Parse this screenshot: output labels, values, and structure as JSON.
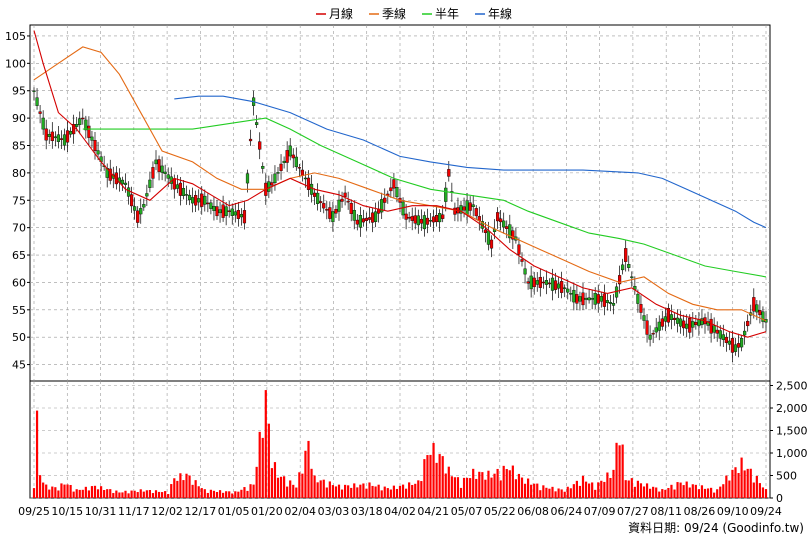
{
  "chart_data": {
    "type": "candlestick",
    "legend": [
      {
        "name": "月線",
        "color": "#d40000"
      },
      {
        "name": "季線",
        "color": "#e46a14"
      },
      {
        "name": "半年",
        "color": "#22cc22"
      },
      {
        "name": "年線",
        "color": "#2266cc"
      }
    ],
    "price_axis": {
      "min": 42,
      "max": 107,
      "ticks": [
        45,
        50,
        55,
        60,
        65,
        70,
        75,
        80,
        85,
        90,
        95,
        100,
        105
      ]
    },
    "volume_axis": {
      "min": 0,
      "max": 2600,
      "ticks": [
        0,
        500,
        1000,
        1500,
        2000,
        2500
      ],
      "tick_labels": [
        "0",
        "500",
        "1,000",
        "1,500",
        "2,000",
        "2,500"
      ]
    },
    "x_labels": [
      "09/25",
      "10/15",
      "10/31",
      "11/17",
      "12/02",
      "12/17",
      "01/05",
      "01/20",
      "02/04",
      "03/03",
      "03/18",
      "04/02",
      "04/21",
      "05/07",
      "05/22",
      "06/08",
      "06/24",
      "07/09",
      "07/27",
      "08/11",
      "08/26",
      "09/10",
      "09/24"
    ],
    "grid": true,
    "up_color": "#22aa22",
    "down_color": "#ee0000",
    "price_anchors": [
      [
        0,
        95
      ],
      [
        4,
        87
      ],
      [
        10,
        86
      ],
      [
        16,
        90
      ],
      [
        24,
        80
      ],
      [
        30,
        78
      ],
      [
        34,
        72
      ],
      [
        36,
        74
      ],
      [
        40,
        82
      ],
      [
        46,
        78
      ],
      [
        52,
        75
      ],
      [
        56,
        75
      ],
      [
        60,
        73
      ],
      [
        64,
        73
      ],
      [
        69,
        72
      ],
      [
        72,
        93
      ],
      [
        76,
        77
      ],
      [
        78,
        78
      ],
      [
        84,
        84
      ],
      [
        88,
        80
      ],
      [
        92,
        76
      ],
      [
        98,
        72
      ],
      [
        102,
        76
      ],
      [
        106,
        71
      ],
      [
        112,
        72
      ],
      [
        118,
        78
      ],
      [
        122,
        72
      ],
      [
        128,
        71
      ],
      [
        134,
        72
      ],
      [
        136,
        80
      ],
      [
        138,
        73
      ],
      [
        144,
        74
      ],
      [
        150,
        67
      ],
      [
        152,
        72
      ],
      [
        158,
        68
      ],
      [
        162,
        60
      ],
      [
        168,
        60
      ],
      [
        174,
        59
      ],
      [
        178,
        57
      ],
      [
        186,
        57
      ],
      [
        190,
        56
      ],
      [
        194,
        65
      ],
      [
        198,
        57
      ],
      [
        202,
        50
      ],
      [
        208,
        54
      ],
      [
        214,
        52
      ],
      [
        220,
        53
      ],
      [
        226,
        50
      ],
      [
        230,
        48
      ],
      [
        232,
        49
      ],
      [
        236,
        56
      ],
      [
        240,
        53
      ]
    ],
    "ma_month": [
      [
        0,
        106
      ],
      [
        3,
        100
      ],
      [
        8,
        91
      ],
      [
        14,
        88
      ],
      [
        22,
        82
      ],
      [
        30,
        77
      ],
      [
        38,
        75
      ],
      [
        46,
        79
      ],
      [
        52,
        78
      ],
      [
        58,
        76
      ],
      [
        64,
        74
      ],
      [
        70,
        75
      ],
      [
        76,
        77
      ],
      [
        84,
        79
      ],
      [
        92,
        77
      ],
      [
        100,
        76
      ],
      [
        108,
        74
      ],
      [
        116,
        73
      ],
      [
        124,
        74
      ],
      [
        132,
        74
      ],
      [
        140,
        73
      ],
      [
        148,
        70
      ],
      [
        156,
        66
      ],
      [
        164,
        63
      ],
      [
        172,
        61
      ],
      [
        180,
        59
      ],
      [
        188,
        58
      ],
      [
        196,
        59
      ],
      [
        204,
        56
      ],
      [
        212,
        54
      ],
      [
        220,
        53
      ],
      [
        228,
        51
      ],
      [
        234,
        50
      ],
      [
        240,
        51
      ]
    ],
    "ma_quarter": [
      [
        0,
        97
      ],
      [
        8,
        100
      ],
      [
        16,
        103
      ],
      [
        22,
        102
      ],
      [
        28,
        98
      ],
      [
        34,
        92
      ],
      [
        42,
        84
      ],
      [
        52,
        82
      ],
      [
        60,
        79
      ],
      [
        68,
        77
      ],
      [
        76,
        77
      ],
      [
        84,
        79
      ],
      [
        92,
        80
      ],
      [
        100,
        79
      ],
      [
        110,
        77
      ],
      [
        120,
        75
      ],
      [
        130,
        74
      ],
      [
        140,
        73
      ],
      [
        150,
        70
      ],
      [
        158,
        68
      ],
      [
        166,
        66
      ],
      [
        174,
        64
      ],
      [
        182,
        62
      ],
      [
        192,
        60
      ],
      [
        200,
        61
      ],
      [
        208,
        58
      ],
      [
        216,
        56
      ],
      [
        224,
        55
      ],
      [
        232,
        55
      ],
      [
        240,
        53
      ]
    ],
    "ma_half": [
      [
        16,
        88
      ],
      [
        30,
        88
      ],
      [
        40,
        88
      ],
      [
        52,
        88
      ],
      [
        64,
        89
      ],
      [
        76,
        90
      ],
      [
        84,
        88
      ],
      [
        94,
        85
      ],
      [
        106,
        82
      ],
      [
        118,
        79
      ],
      [
        130,
        77
      ],
      [
        142,
        76
      ],
      [
        154,
        75
      ],
      [
        162,
        73
      ],
      [
        172,
        71
      ],
      [
        182,
        69
      ],
      [
        192,
        68
      ],
      [
        200,
        67
      ],
      [
        210,
        65
      ],
      [
        220,
        63
      ],
      [
        230,
        62
      ],
      [
        240,
        61
      ]
    ],
    "ma_year": [
      [
        46,
        93.5
      ],
      [
        54,
        94
      ],
      [
        62,
        94
      ],
      [
        72,
        93
      ],
      [
        84,
        91
      ],
      [
        96,
        88
      ],
      [
        108,
        86
      ],
      [
        120,
        83
      ],
      [
        130,
        82
      ],
      [
        142,
        81
      ],
      [
        154,
        80.5
      ],
      [
        166,
        80.5
      ],
      [
        180,
        80.5
      ],
      [
        198,
        80
      ],
      [
        206,
        79
      ],
      [
        214,
        77
      ],
      [
        222,
        75
      ],
      [
        230,
        73
      ],
      [
        236,
        71
      ],
      [
        240,
        70
      ]
    ],
    "volume_anchors": [
      [
        0,
        400
      ],
      [
        1,
        2000
      ],
      [
        2,
        600
      ],
      [
        4,
        300
      ],
      [
        8,
        250
      ],
      [
        10,
        400
      ],
      [
        14,
        200
      ],
      [
        20,
        300
      ],
      [
        28,
        150
      ],
      [
        36,
        200
      ],
      [
        44,
        150
      ],
      [
        46,
        500
      ],
      [
        50,
        600
      ],
      [
        56,
        200
      ],
      [
        60,
        180
      ],
      [
        66,
        150
      ],
      [
        72,
        350
      ],
      [
        76,
        2600
      ],
      [
        78,
        1000
      ],
      [
        80,
        600
      ],
      [
        86,
        300
      ],
      [
        90,
        1400
      ],
      [
        92,
        500
      ],
      [
        100,
        300
      ],
      [
        110,
        350
      ],
      [
        116,
        250
      ],
      [
        120,
        300
      ],
      [
        126,
        400
      ],
      [
        128,
        900
      ],
      [
        130,
        1300
      ],
      [
        134,
        1000
      ],
      [
        136,
        700
      ],
      [
        140,
        400
      ],
      [
        144,
        650
      ],
      [
        150,
        600
      ],
      [
        156,
        800
      ],
      [
        160,
        500
      ],
      [
        166,
        300
      ],
      [
        174,
        200
      ],
      [
        180,
        500
      ],
      [
        184,
        300
      ],
      [
        190,
        700
      ],
      [
        192,
        1900
      ],
      [
        194,
        500
      ],
      [
        200,
        350
      ],
      [
        206,
        200
      ],
      [
        212,
        400
      ],
      [
        218,
        300
      ],
      [
        224,
        200
      ],
      [
        228,
        600
      ],
      [
        232,
        900
      ],
      [
        236,
        600
      ],
      [
        240,
        200
      ]
    ],
    "volume_color": "#ff0000",
    "footer": "資料日期: 09/24  (Goodinfo.tw)"
  }
}
